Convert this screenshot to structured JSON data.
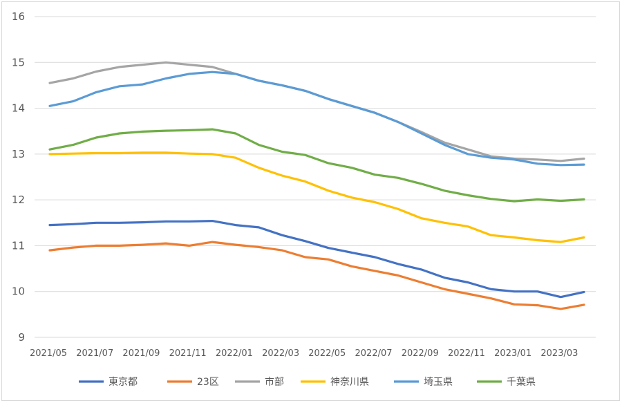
{
  "chart_data": {
    "type": "line",
    "title": "",
    "xlabel": "",
    "ylabel": "",
    "ylim": [
      9,
      16
    ],
    "yticks": [
      9,
      10,
      11,
      12,
      13,
      14,
      15,
      16
    ],
    "grid": true,
    "legend": "bottom",
    "x": [
      "2021/05",
      "2021/06",
      "2021/07",
      "2021/08",
      "2021/09",
      "2021/10",
      "2021/11",
      "2021/12",
      "2022/01",
      "2022/02",
      "2022/03",
      "2022/04",
      "2022/05",
      "2022/06",
      "2022/07",
      "2022/08",
      "2022/09",
      "2022/10",
      "2022/11",
      "2022/12",
      "2023/01",
      "2023/02",
      "2023/03",
      "2023/04"
    ],
    "xtick_labels": [
      "2021/05",
      "2021/07",
      "2021/09",
      "2021/11",
      "2022/01",
      "2022/03",
      "2022/05",
      "2022/07",
      "2022/09",
      "2022/11",
      "2023/01",
      "2023/03"
    ],
    "series": [
      {
        "name": "東京都",
        "color": "#4472c4",
        "values": [
          11.45,
          11.47,
          11.5,
          11.5,
          11.51,
          11.53,
          11.53,
          11.54,
          11.45,
          11.4,
          11.23,
          11.1,
          10.95,
          10.85,
          10.75,
          10.6,
          10.48,
          10.3,
          10.2,
          10.05,
          10.0,
          10.0,
          9.88,
          9.99
        ]
      },
      {
        "name": "23区",
        "color": "#ed7d31",
        "values": [
          10.9,
          10.96,
          11.0,
          11.0,
          11.02,
          11.05,
          11.0,
          11.08,
          11.02,
          10.97,
          10.9,
          10.75,
          10.7,
          10.55,
          10.45,
          10.35,
          10.2,
          10.05,
          9.95,
          9.85,
          9.72,
          9.7,
          9.62,
          9.71
        ]
      },
      {
        "name": "市部",
        "color": "#a5a5a5",
        "values": [
          14.55,
          14.65,
          14.8,
          14.9,
          14.95,
          15.0,
          14.95,
          14.9,
          14.75,
          14.6,
          14.5,
          14.38,
          14.2,
          14.05,
          13.9,
          13.7,
          13.48,
          13.25,
          13.1,
          12.95,
          12.9,
          12.88,
          12.85,
          12.9
        ]
      },
      {
        "name": "神奈川県",
        "color": "#ffc000",
        "values": [
          13.0,
          13.01,
          13.02,
          13.02,
          13.03,
          13.03,
          13.01,
          13.0,
          12.92,
          12.7,
          12.53,
          12.4,
          12.2,
          12.05,
          11.95,
          11.8,
          11.6,
          11.5,
          11.42,
          11.23,
          11.18,
          11.12,
          11.08,
          11.18
        ]
      },
      {
        "name": "埼玉県",
        "color": "#5b9bd5",
        "values": [
          14.05,
          14.15,
          14.35,
          14.48,
          14.52,
          14.65,
          14.75,
          14.79,
          14.75,
          14.6,
          14.5,
          14.38,
          14.2,
          14.05,
          13.9,
          13.7,
          13.45,
          13.2,
          13.0,
          12.92,
          12.88,
          12.79,
          12.76,
          12.77
        ]
      },
      {
        "name": "千葉県",
        "color": "#70ad47",
        "values": [
          13.1,
          13.2,
          13.36,
          13.45,
          13.49,
          13.51,
          13.52,
          13.54,
          13.45,
          13.2,
          13.05,
          12.98,
          12.8,
          12.7,
          12.55,
          12.48,
          12.35,
          12.2,
          12.1,
          12.02,
          11.97,
          12.01,
          11.98,
          12.01
        ]
      }
    ]
  }
}
